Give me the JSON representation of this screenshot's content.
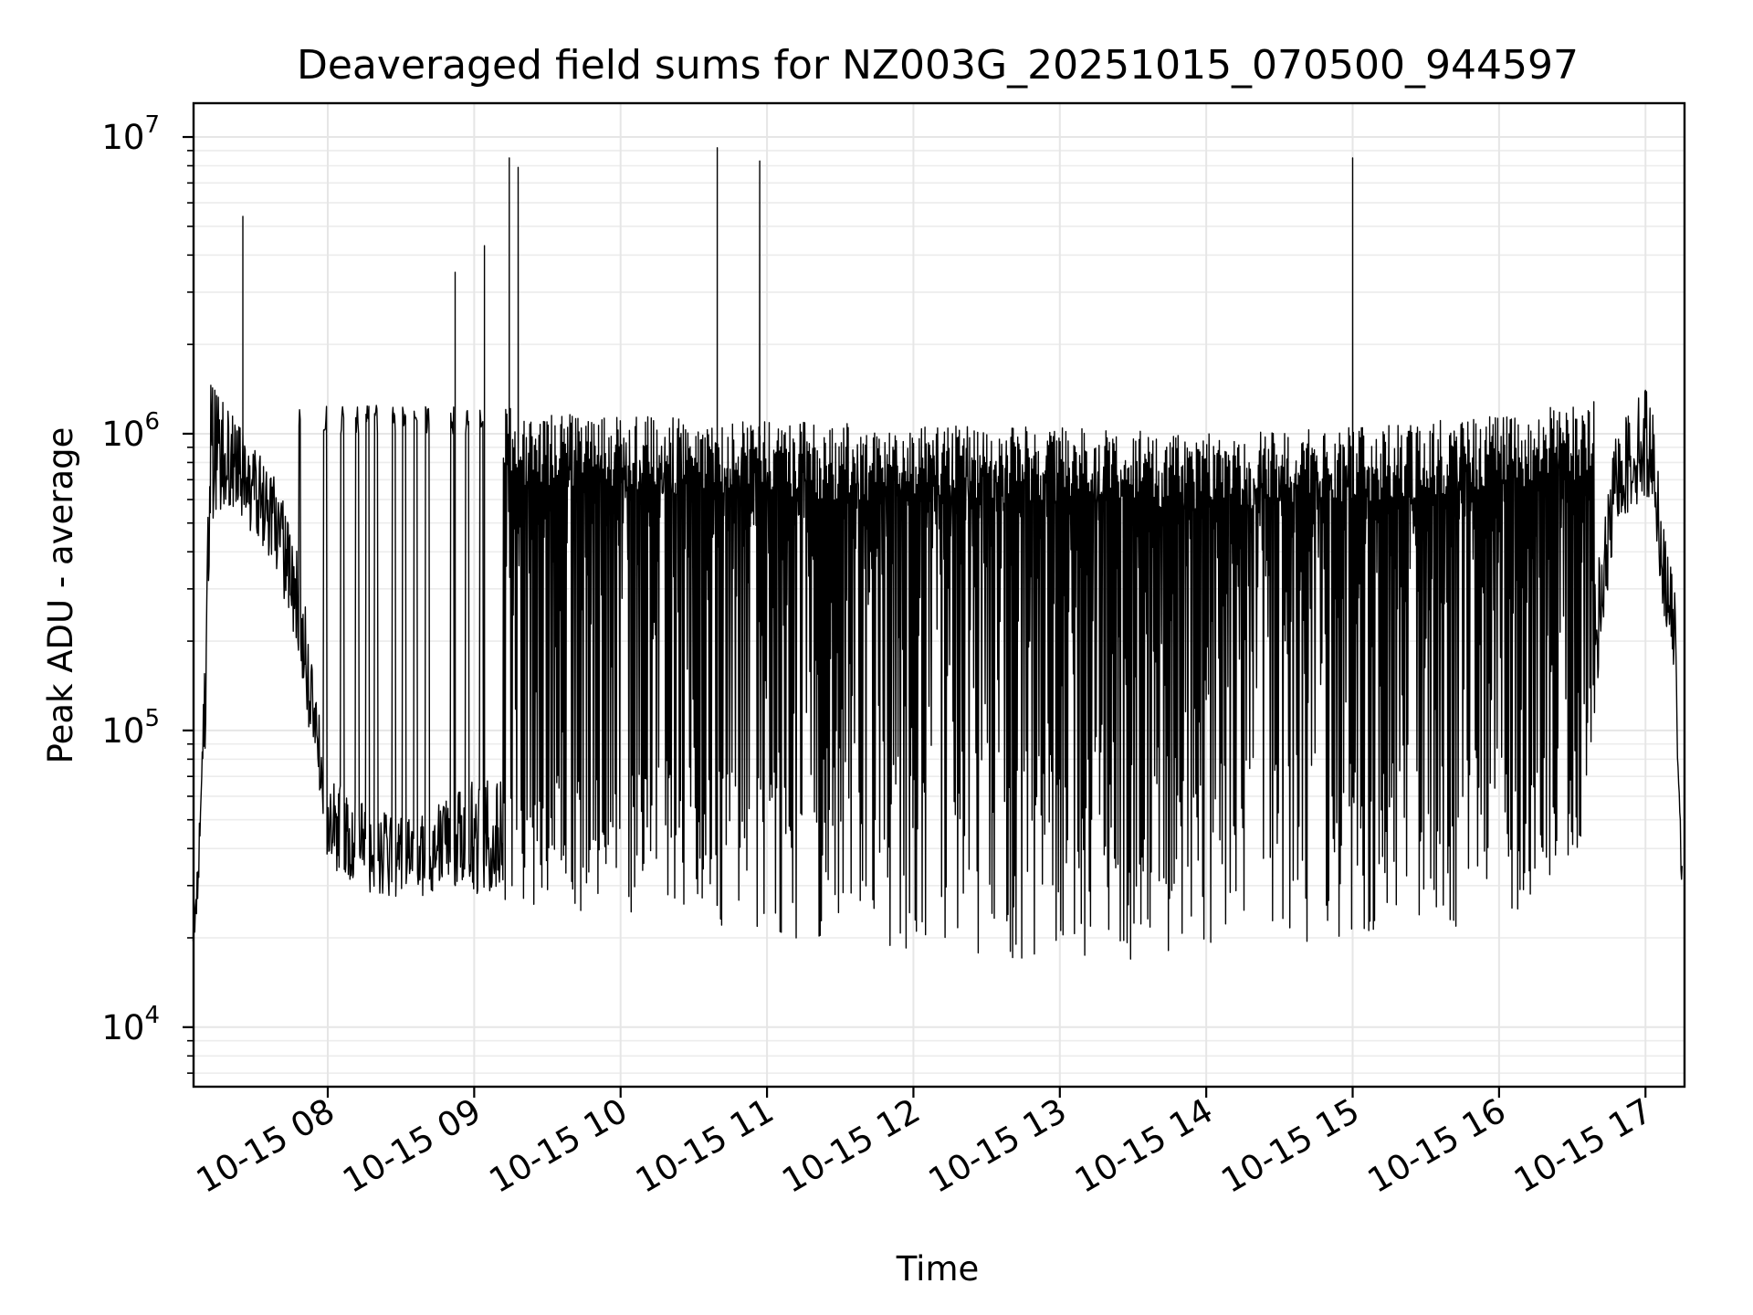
{
  "chart_data": {
    "type": "line",
    "title": "Deaveraged field sums for NZ003G_20251015_070500_944597",
    "xlabel": "Time",
    "ylabel": "Peak ADU - average",
    "yscale": "log",
    "ylim": [
      6300,
      13000000
    ],
    "xlim": [
      "2025-10-15 07:05",
      "2025-10-15 17:16"
    ],
    "grid": true,
    "legend": "none",
    "line_color": "#000000",
    "x_ticks": [
      {
        "label": "10-15 08",
        "hour": 8
      },
      {
        "label": "10-15 09",
        "hour": 9
      },
      {
        "label": "10-15 10",
        "hour": 10
      },
      {
        "label": "10-15 11",
        "hour": 11
      },
      {
        "label": "10-15 12",
        "hour": 12
      },
      {
        "label": "10-15 13",
        "hour": 13
      },
      {
        "label": "10-15 14",
        "hour": 14
      },
      {
        "label": "10-15 15",
        "hour": 15
      },
      {
        "label": "10-15 16",
        "hour": 16
      },
      {
        "label": "10-15 17",
        "hour": 17
      }
    ],
    "y_ticks": [
      {
        "base": "10",
        "exp": "4",
        "value": 10000
      },
      {
        "base": "10",
        "exp": "5",
        "value": 100000
      },
      {
        "base": "10",
        "exp": "6",
        "value": 1000000
      },
      {
        "base": "10",
        "exp": "7",
        "value": 10000000
      }
    ],
    "envelope": [
      {
        "t": 7.08,
        "low": 18000,
        "high": 25000
      },
      {
        "t": 7.15,
        "low": 40000,
        "high": 120000
      },
      {
        "t": 7.2,
        "low": 450000,
        "high": 1500000
      },
      {
        "t": 7.35,
        "low": 550000,
        "high": 1200000
      },
      {
        "t": 7.5,
        "low": 450000,
        "high": 900000
      },
      {
        "t": 7.65,
        "low": 350000,
        "high": 700000
      },
      {
        "t": 7.8,
        "low": 180000,
        "high": 400000
      },
      {
        "t": 7.9,
        "low": 80000,
        "high": 160000
      },
      {
        "t": 8.0,
        "low": 35000,
        "high": 70000
      },
      {
        "t": 8.3,
        "low": 28000,
        "high": 55000
      },
      {
        "t": 8.6,
        "low": 27000,
        "high": 50000
      },
      {
        "t": 8.8,
        "low": 30000,
        "high": 60000
      },
      {
        "t": 9.0,
        "low": 28000,
        "high": 70000
      },
      {
        "t": 9.5,
        "low": 25000,
        "high": 70000
      },
      {
        "t": 10.0,
        "low": 24000,
        "high": 80000
      },
      {
        "t": 10.5,
        "low": 22000,
        "high": 90000
      },
      {
        "t": 11.0,
        "low": 20000,
        "high": 90000
      },
      {
        "t": 11.5,
        "low": 19000,
        "high": 90000
      },
      {
        "t": 12.0,
        "low": 17000,
        "high": 90000
      },
      {
        "t": 12.5,
        "low": 17000,
        "high": 90000
      },
      {
        "t": 13.0,
        "low": 17000,
        "high": 90000
      },
      {
        "t": 13.5,
        "low": 16000,
        "high": 90000
      },
      {
        "t": 14.0,
        "low": 19000,
        "high": 90000
      },
      {
        "t": 14.5,
        "low": 19000,
        "high": 90000
      },
      {
        "t": 15.0,
        "low": 20000,
        "high": 90000
      },
      {
        "t": 15.5,
        "low": 21000,
        "high": 90000
      },
      {
        "t": 16.0,
        "low": 23000,
        "high": 90000
      },
      {
        "t": 16.4,
        "low": 30000,
        "high": 90000
      },
      {
        "t": 16.55,
        "low": 40000,
        "high": 90000
      },
      {
        "t": 16.65,
        "low": 100000,
        "high": 300000
      },
      {
        "t": 16.8,
        "low": 500000,
        "high": 1000000
      },
      {
        "t": 17.0,
        "low": 600000,
        "high": 1500000
      },
      {
        "t": 17.05,
        "low": 600000,
        "high": 1200000
      },
      {
        "t": 17.12,
        "low": 250000,
        "high": 500000
      },
      {
        "t": 17.2,
        "low": 150000,
        "high": 300000
      },
      {
        "t": 17.25,
        "low": 25000,
        "high": 35000
      }
    ],
    "upper_band": [
      {
        "t": 8.0,
        "value": 1250000
      },
      {
        "t": 9.0,
        "value": 1250000
      },
      {
        "t": 10.0,
        "value": 1150000
      },
      {
        "t": 11.0,
        "value": 1100000
      },
      {
        "t": 12.0,
        "value": 1070000
      },
      {
        "t": 13.0,
        "value": 1050000
      },
      {
        "t": 14.0,
        "value": 1000000
      },
      {
        "t": 15.0,
        "value": 1050000
      },
      {
        "t": 16.0,
        "value": 1150000
      },
      {
        "t": 16.65,
        "value": 1300000
      }
    ],
    "dense_interval": [
      9.2,
      16.65
    ],
    "sparse_drops": [
      7.8,
      7.98,
      8.1,
      8.2,
      8.27,
      8.33,
      8.45,
      8.52,
      8.6,
      8.68,
      8.85,
      8.95,
      9.05
    ],
    "spikes": [
      {
        "t": 7.42,
        "value": 5400000
      },
      {
        "t": 8.87,
        "value": 3500000
      },
      {
        "t": 9.07,
        "value": 4300000
      },
      {
        "t": 9.24,
        "value": 8500000
      },
      {
        "t": 9.3,
        "value": 7900000
      },
      {
        "t": 10.66,
        "value": 9200000
      },
      {
        "t": 10.95,
        "value": 8300000
      },
      {
        "t": 15.0,
        "value": 8500000
      }
    ]
  }
}
